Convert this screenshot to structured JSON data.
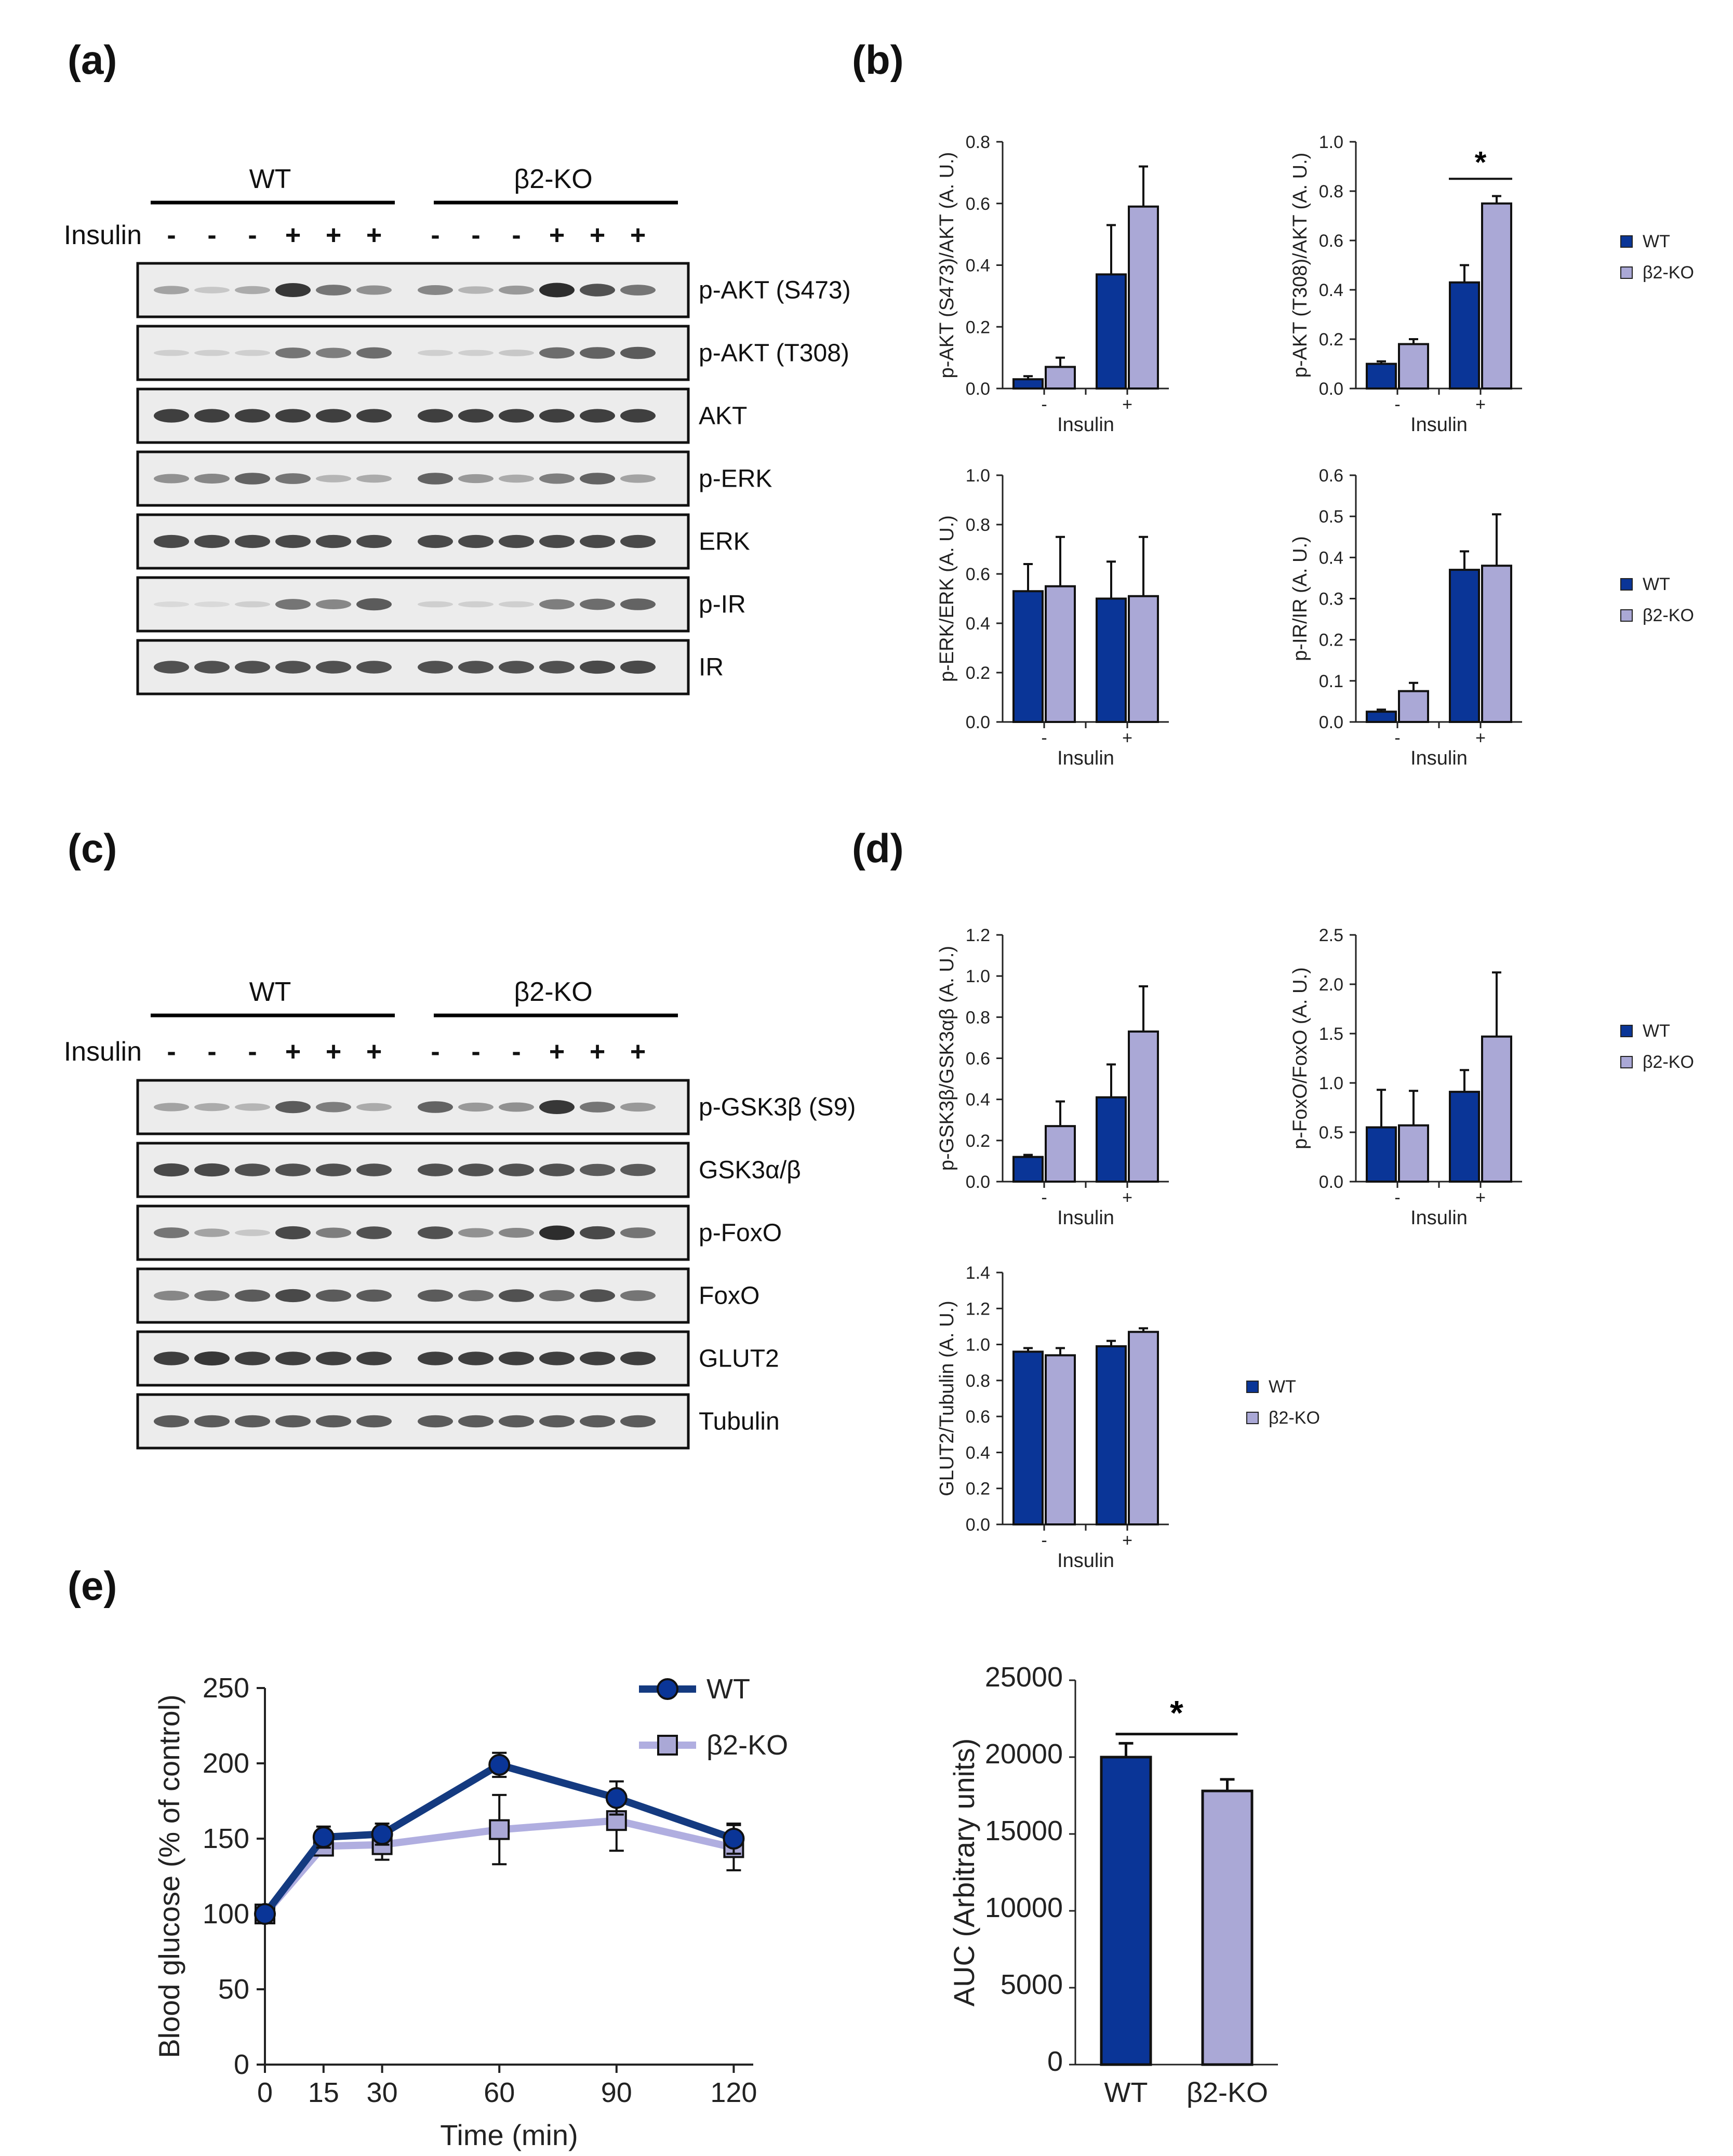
{
  "panels": {
    "a": "(a)",
    "b": "(b)",
    "c": "(c)",
    "d": "(d)",
    "e": "(e)"
  },
  "colors": {
    "wt": "#0a3597",
    "ko": "#aaa8d6",
    "wt_line": "#143a80",
    "ko_line": "#b0aee0"
  },
  "blot_a": {
    "group_wt": "WT",
    "group_ko": "β2-KO",
    "insulin_label": "Insulin",
    "signs": [
      "-",
      "-",
      "-",
      "+",
      "+",
      "+",
      "-",
      "-",
      "-",
      "+",
      "+",
      "+"
    ],
    "rows": [
      "p-AKT (S473)",
      "p-AKT (T308)",
      "AKT",
      "p-ERK",
      "ERK",
      "p-IR",
      "IR"
    ],
    "intensity": [
      [
        0.35,
        0.15,
        0.3,
        0.95,
        0.6,
        0.45,
        0.5,
        0.25,
        0.4,
        1.0,
        0.8,
        0.6
      ],
      [
        0.1,
        0.1,
        0.1,
        0.6,
        0.55,
        0.65,
        0.1,
        0.1,
        0.15,
        0.65,
        0.7,
        0.75
      ],
      [
        0.9,
        0.9,
        0.9,
        0.9,
        0.9,
        0.9,
        0.9,
        0.9,
        0.9,
        0.9,
        0.9,
        0.9
      ],
      [
        0.45,
        0.5,
        0.7,
        0.6,
        0.25,
        0.3,
        0.7,
        0.4,
        0.3,
        0.55,
        0.7,
        0.35
      ],
      [
        0.85,
        0.85,
        0.85,
        0.85,
        0.85,
        0.85,
        0.85,
        0.85,
        0.85,
        0.85,
        0.85,
        0.85
      ],
      [
        0.05,
        0.05,
        0.1,
        0.6,
        0.5,
        0.75,
        0.1,
        0.1,
        0.1,
        0.55,
        0.65,
        0.7
      ],
      [
        0.8,
        0.8,
        0.8,
        0.8,
        0.8,
        0.8,
        0.8,
        0.8,
        0.8,
        0.8,
        0.85,
        0.85
      ]
    ]
  },
  "blot_c": {
    "group_wt": "WT",
    "group_ko": "β2-KO",
    "insulin_label": "Insulin",
    "signs": [
      "-",
      "-",
      "-",
      "+",
      "+",
      "+",
      "-",
      "-",
      "-",
      "+",
      "+",
      "+"
    ],
    "rows": [
      "p-GSK3β (S9)",
      "GSK3α/β",
      "p-FoxO",
      "FoxO",
      "GLUT2",
      "Tubulin"
    ],
    "intensity": [
      [
        0.35,
        0.3,
        0.25,
        0.75,
        0.55,
        0.3,
        0.7,
        0.4,
        0.45,
        0.95,
        0.6,
        0.4
      ],
      [
        0.85,
        0.85,
        0.8,
        0.8,
        0.8,
        0.8,
        0.8,
        0.8,
        0.8,
        0.8,
        0.75,
        0.75
      ],
      [
        0.6,
        0.35,
        0.15,
        0.85,
        0.55,
        0.8,
        0.8,
        0.45,
        0.5,
        1.0,
        0.85,
        0.6
      ],
      [
        0.5,
        0.6,
        0.75,
        0.85,
        0.75,
        0.75,
        0.75,
        0.65,
        0.8,
        0.65,
        0.8,
        0.6
      ],
      [
        0.9,
        0.95,
        0.9,
        0.9,
        0.9,
        0.9,
        0.9,
        0.9,
        0.9,
        0.9,
        0.9,
        0.9
      ],
      [
        0.75,
        0.75,
        0.75,
        0.75,
        0.75,
        0.75,
        0.75,
        0.75,
        0.75,
        0.75,
        0.75,
        0.75
      ]
    ]
  },
  "chart_data": [
    {
      "id": "b1",
      "type": "bar",
      "ylabel": "p-AKT (S473)/AKT (A. U.)",
      "xlabel": "Insulin",
      "categories": [
        "-",
        "+"
      ],
      "ylim": [
        0,
        0.8
      ],
      "yticks": [
        "0.0",
        "0.2",
        "0.4",
        "0.6",
        "0.8"
      ],
      "series": [
        {
          "name": "WT",
          "values": [
            0.03,
            0.37
          ],
          "errors": [
            0.01,
            0.16
          ]
        },
        {
          "name": "β2-KO",
          "values": [
            0.07,
            0.59
          ],
          "errors": [
            0.03,
            0.13
          ]
        }
      ]
    },
    {
      "id": "b2",
      "type": "bar",
      "ylabel": "p-AKT (T308)/AKT (A. U.)",
      "xlabel": "Insulin",
      "categories": [
        "-",
        "+"
      ],
      "ylim": [
        0,
        1.0
      ],
      "yticks": [
        "0.0",
        "0.2",
        "0.4",
        "0.6",
        "0.8",
        "1.0"
      ],
      "series": [
        {
          "name": "WT",
          "values": [
            0.1,
            0.43
          ],
          "errors": [
            0.01,
            0.07
          ]
        },
        {
          "name": "β2-KO",
          "values": [
            0.18,
            0.75
          ],
          "errors": [
            0.02,
            0.03
          ]
        }
      ],
      "significance": "*",
      "legend": [
        "WT",
        "β2-KO"
      ]
    },
    {
      "id": "b3",
      "type": "bar",
      "ylabel": "p-ERK/ERK (A. U.)",
      "xlabel": "Insulin",
      "categories": [
        "-",
        "+"
      ],
      "ylim": [
        0,
        1.0
      ],
      "yticks": [
        "0.0",
        "0.2",
        "0.4",
        "0.6",
        "0.8",
        "1.0"
      ],
      "series": [
        {
          "name": "WT",
          "values": [
            0.53,
            0.5
          ],
          "errors": [
            0.11,
            0.15
          ]
        },
        {
          "name": "β2-KO",
          "values": [
            0.55,
            0.51
          ],
          "errors": [
            0.2,
            0.24
          ]
        }
      ]
    },
    {
      "id": "b4",
      "type": "bar",
      "ylabel": "p-IR/IR (A. U.)",
      "xlabel": "Insulin",
      "categories": [
        "-",
        "+"
      ],
      "ylim": [
        0,
        0.6
      ],
      "yticks": [
        "0.0",
        "0.1",
        "0.2",
        "0.3",
        "0.4",
        "0.5",
        "0.6"
      ],
      "series": [
        {
          "name": "WT",
          "values": [
            0.025,
            0.37
          ],
          "errors": [
            0.005,
            0.045
          ]
        },
        {
          "name": "β2-KO",
          "values": [
            0.075,
            0.38
          ],
          "errors": [
            0.02,
            0.125
          ]
        }
      ],
      "legend": [
        "WT",
        "β2-KO"
      ]
    },
    {
      "id": "d1",
      "type": "bar",
      "ylabel": "p-GSK3β/GSK3αβ (A. U.)",
      "xlabel": "Insulin",
      "categories": [
        "-",
        "+"
      ],
      "ylim": [
        0,
        1.2
      ],
      "yticks": [
        "0.0",
        "0.2",
        "0.4",
        "0.6",
        "0.8",
        "1.0",
        "1.2"
      ],
      "series": [
        {
          "name": "WT",
          "values": [
            0.12,
            0.41
          ],
          "errors": [
            0.01,
            0.16
          ]
        },
        {
          "name": "β2-KO",
          "values": [
            0.27,
            0.73
          ],
          "errors": [
            0.12,
            0.22
          ]
        }
      ]
    },
    {
      "id": "d2",
      "type": "bar",
      "ylabel": "p-FoxO/FoxO (A. U.)",
      "xlabel": "Insulin",
      "categories": [
        "-",
        "+"
      ],
      "ylim": [
        0,
        2.5
      ],
      "yticks": [
        "0.0",
        "0.5",
        "1.0",
        "1.5",
        "2.0",
        "2.5"
      ],
      "series": [
        {
          "name": "WT",
          "values": [
            0.55,
            0.91
          ],
          "errors": [
            0.38,
            0.22
          ]
        },
        {
          "name": "β2-KO",
          "values": [
            0.57,
            1.47
          ],
          "errors": [
            0.35,
            0.65
          ]
        }
      ],
      "legend": [
        "WT",
        "β2-KO"
      ]
    },
    {
      "id": "d3",
      "type": "bar",
      "ylabel": "GLUT2/Tubulin (A. U.)",
      "xlabel": "Insulin",
      "categories": [
        "-",
        "+"
      ],
      "ylim": [
        0,
        1.4
      ],
      "yticks": [
        "0.0",
        "0.2",
        "0.4",
        "0.6",
        "0.8",
        "1.0",
        "1.2",
        "1.4"
      ],
      "series": [
        {
          "name": "WT",
          "values": [
            0.96,
            0.99
          ],
          "errors": [
            0.02,
            0.03
          ]
        },
        {
          "name": "β2-KO",
          "values": [
            0.94,
            1.07
          ],
          "errors": [
            0.04,
            0.02
          ]
        }
      ],
      "legend": [
        "WT",
        "β2-KO"
      ]
    },
    {
      "id": "e1",
      "type": "line",
      "ylabel": "Blood glucose (% of control)",
      "xlabel": "Time (min)",
      "x": [
        0,
        15,
        30,
        60,
        90,
        120
      ],
      "xlim": [
        0,
        125
      ],
      "ylim": [
        0,
        250
      ],
      "xticks": [
        "0",
        "15",
        "30",
        "60",
        "90",
        "120"
      ],
      "yticks": [
        "0",
        "50",
        "100",
        "150",
        "200",
        "250"
      ],
      "series": [
        {
          "name": "WT",
          "values": [
            100,
            151,
            153,
            199,
            177,
            150
          ],
          "errors": [
            0,
            7,
            7,
            8,
            11,
            10
          ],
          "marker": "circle"
        },
        {
          "name": "β2-KO",
          "values": [
            100,
            145,
            146,
            156,
            162,
            144
          ],
          "errors": [
            0,
            5,
            10,
            23,
            20,
            15
          ],
          "marker": "square"
        }
      ]
    },
    {
      "id": "e2",
      "type": "bar",
      "ylabel": "AUC (Arbitrary units)",
      "xlabel": "",
      "categories": [
        "WT",
        "β2-KO"
      ],
      "ylim": [
        0,
        25000
      ],
      "yticks": [
        "0",
        "5000",
        "10000",
        "15000",
        "20000",
        "25000"
      ],
      "values": [
        20000,
        17800
      ],
      "errors": [
        900,
        750
      ],
      "significance": "*"
    }
  ]
}
